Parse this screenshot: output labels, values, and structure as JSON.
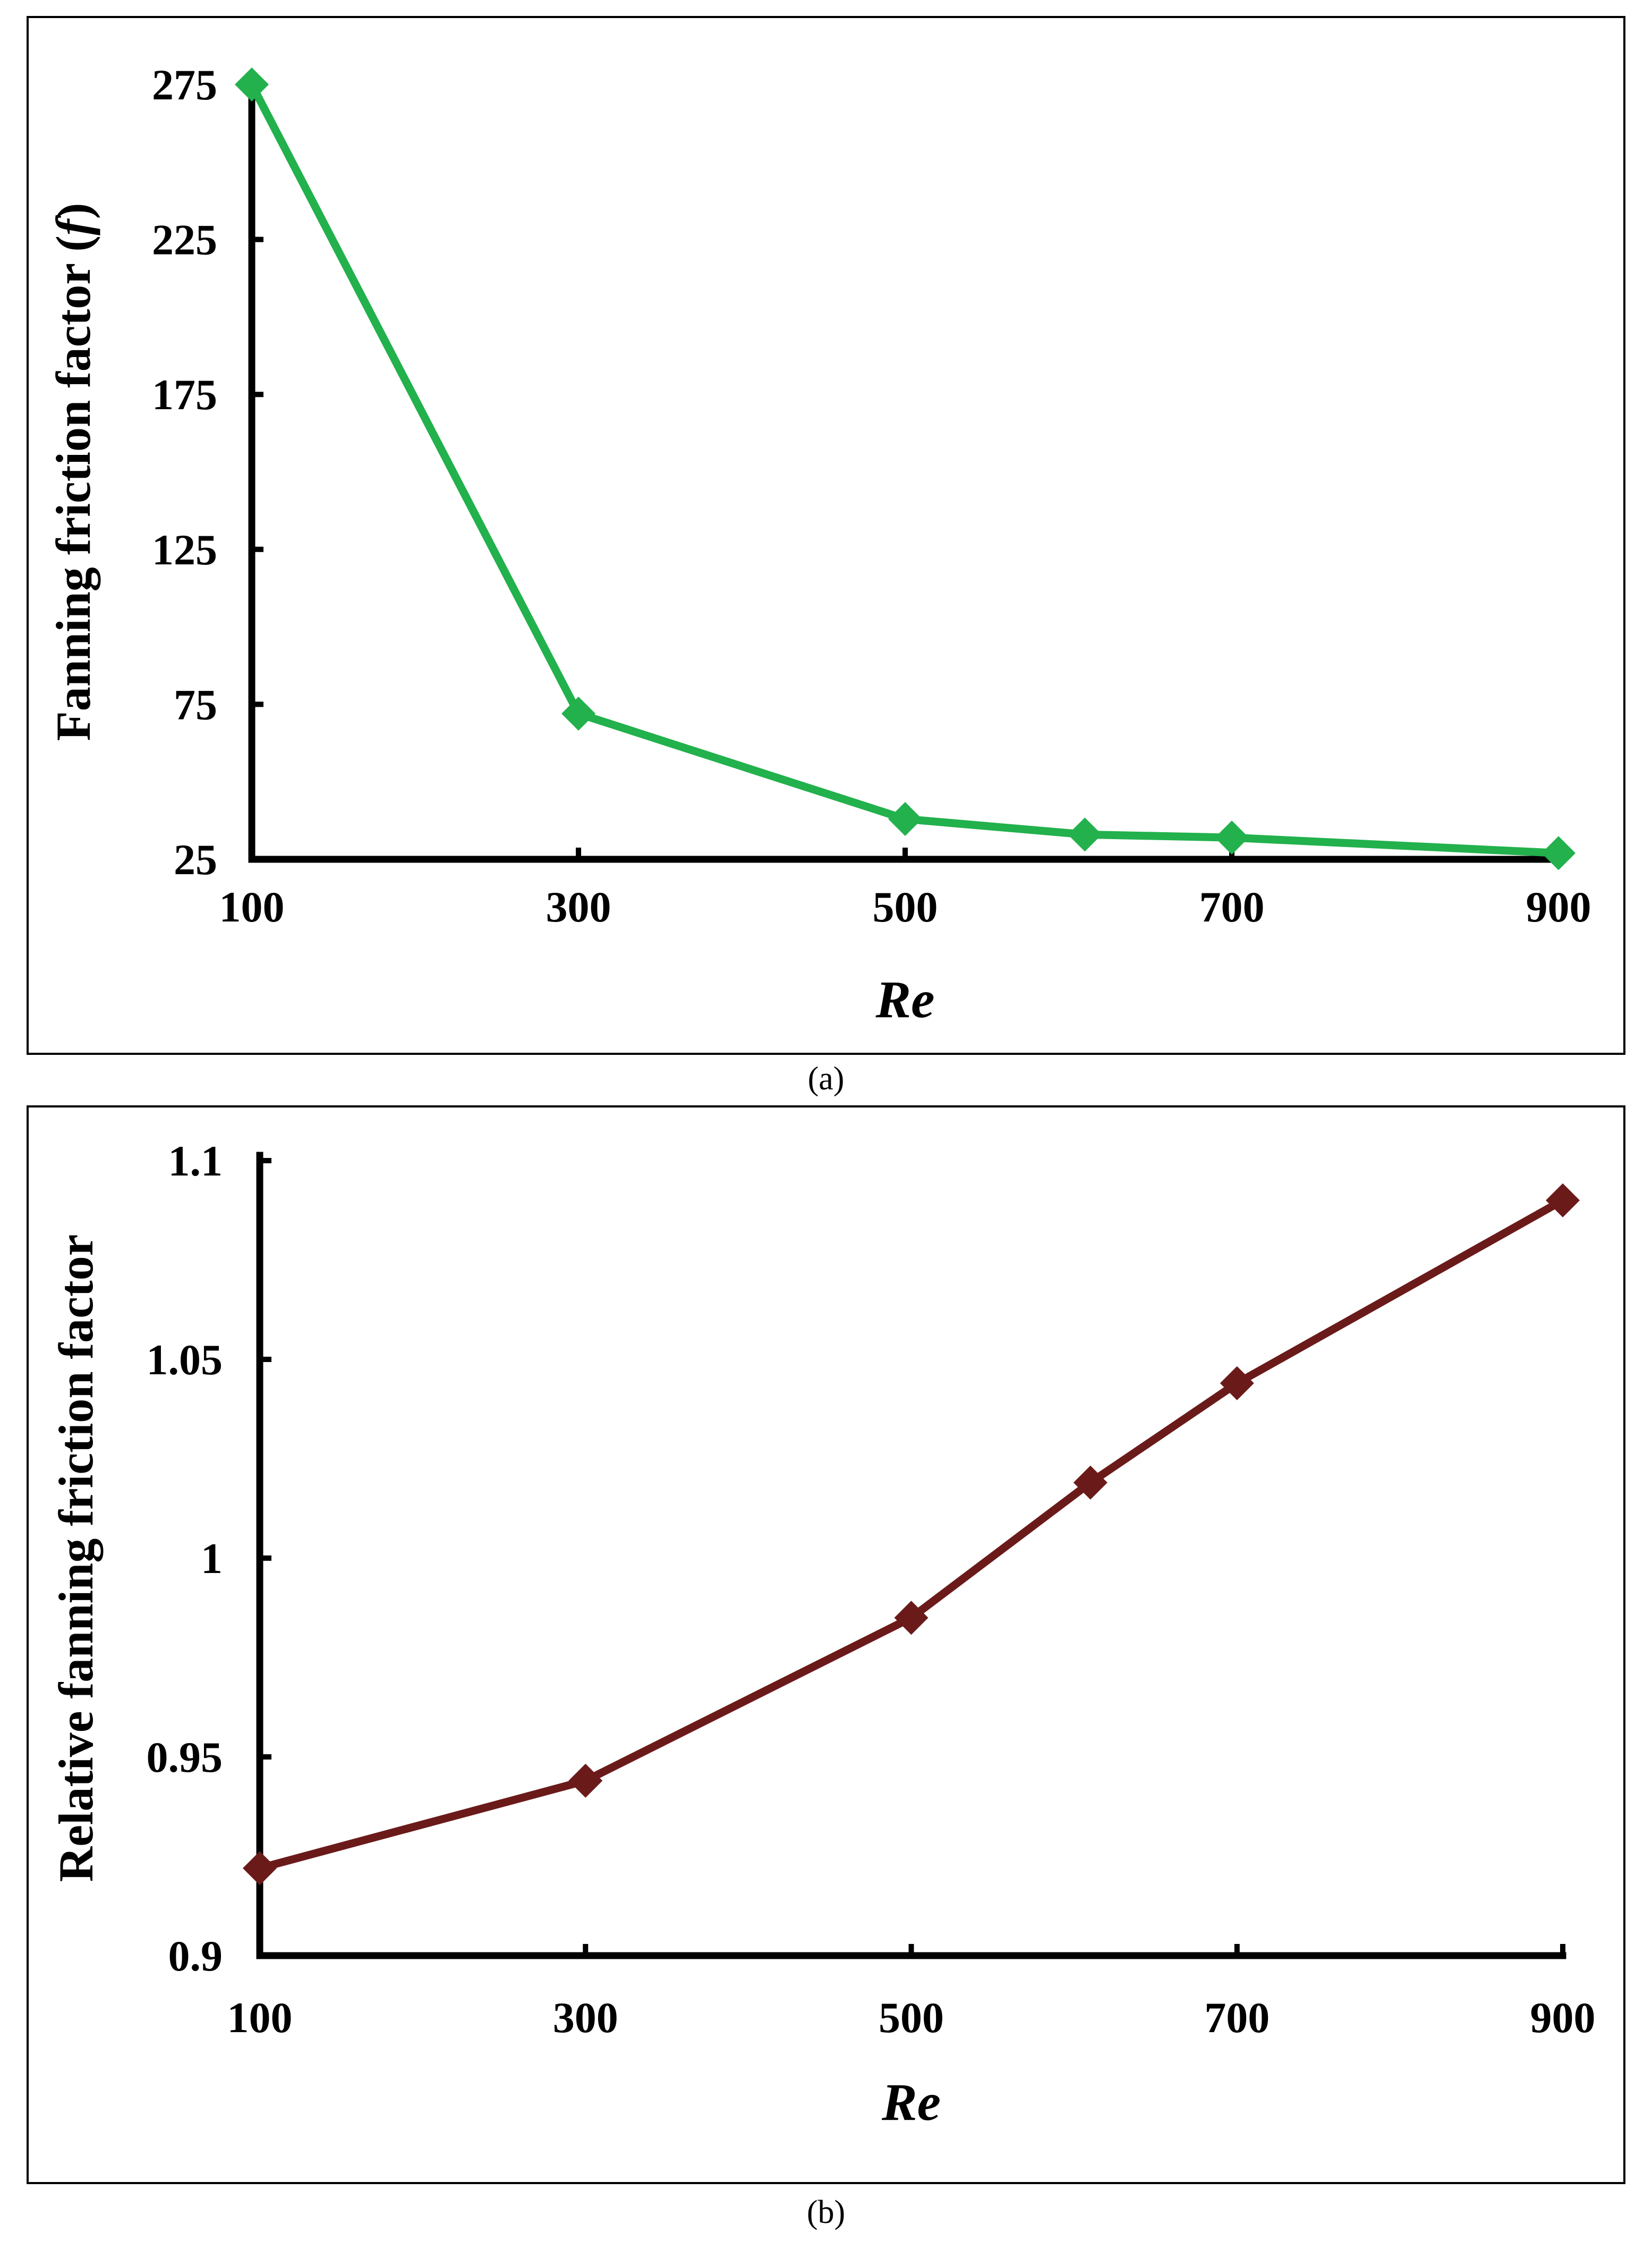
{
  "chart_data": [
    {
      "type": "line",
      "panel": "a",
      "caption": "(a)",
      "xlabel": "Re",
      "ylabel": "Fanning friction factor (f)",
      "ylabel_parts": [
        "Fanning friction factor (",
        "f",
        ")"
      ],
      "x_ticks": [
        100,
        300,
        500,
        700,
        900
      ],
      "y_ticks": [
        25,
        75,
        125,
        175,
        225,
        275
      ],
      "xlim": [
        100,
        900
      ],
      "ylim": [
        25,
        275
      ],
      "series": [
        {
          "name": "f",
          "color": "#22b14c",
          "marker": "diamond",
          "x": [
            100,
            300,
            500,
            610,
            700,
            900
          ],
          "y": [
            275,
            72,
            38,
            33,
            32,
            27
          ]
        }
      ]
    },
    {
      "type": "line",
      "panel": "b",
      "caption": "(b)",
      "xlabel": "Re",
      "ylabel": "Relative fanning friction factor",
      "x_ticks": [
        100,
        300,
        500,
        700,
        900
      ],
      "y_ticks": [
        0.9,
        0.95,
        1,
        1.05,
        1.1
      ],
      "y_tick_labels": [
        "0.9",
        "0.95",
        "1",
        "1.05",
        "1.1"
      ],
      "xlim": [
        100,
        900
      ],
      "ylim": [
        0.9,
        1.1
      ],
      "series": [
        {
          "name": "relative f",
          "color": "#6b1a1a",
          "marker": "diamond",
          "x": [
            100,
            300,
            500,
            610,
            700,
            900
          ],
          "y": [
            0.922,
            0.944,
            0.985,
            1.019,
            1.044,
            1.09
          ]
        }
      ]
    }
  ]
}
